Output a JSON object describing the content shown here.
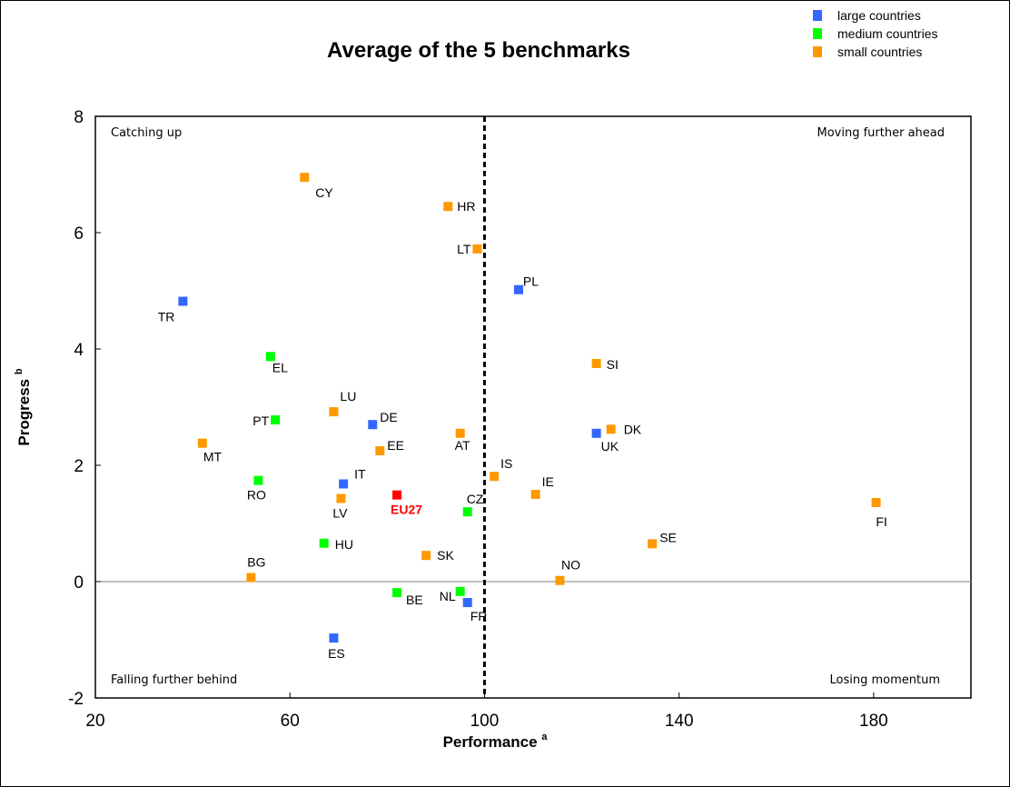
{
  "chart_data": {
    "type": "scatter",
    "title": "Average of the 5 benchmarks",
    "xlabel": "Performance",
    "xlabel_sup": "a",
    "ylabel": "Progress",
    "ylabel_sup": "b",
    "xlim": [
      20,
      200
    ],
    "ylim": [
      -2,
      8
    ],
    "xticks": [
      20,
      60,
      100,
      140,
      180
    ],
    "yticks": [
      -2,
      0,
      2,
      4,
      6,
      8
    ],
    "reference_lines": {
      "vertical_x": 100,
      "horizontal_y": 0
    },
    "grid": false,
    "legend_position": "top-right",
    "colors": {
      "large": "#3366ff",
      "medium": "#00ff00",
      "small": "#ff9900",
      "highlight": "#ff0000"
    },
    "legend": [
      {
        "group": "large",
        "label": "large countries"
      },
      {
        "group": "medium",
        "label": "medium countries"
      },
      {
        "group": "small",
        "label": "small countries"
      }
    ],
    "quadrant_labels": {
      "top_left": "Catching up",
      "top_right": "Moving further ahead",
      "bottom_left": "Falling further behind",
      "bottom_right": "Losing momentum"
    },
    "points": [
      {
        "label": "CY",
        "x": 63,
        "y": 6.95,
        "group": "small"
      },
      {
        "label": "HR",
        "x": 92.5,
        "y": 6.45,
        "group": "small"
      },
      {
        "label": "LT",
        "x": 98.5,
        "y": 5.72,
        "group": "small"
      },
      {
        "label": "PL",
        "x": 107,
        "y": 5.02,
        "group": "large"
      },
      {
        "label": "TR",
        "x": 38,
        "y": 4.82,
        "group": "large"
      },
      {
        "label": "EL",
        "x": 56,
        "y": 3.87,
        "group": "medium"
      },
      {
        "label": "SI",
        "x": 123,
        "y": 3.75,
        "group": "small"
      },
      {
        "label": "LU",
        "x": 69,
        "y": 2.92,
        "group": "small"
      },
      {
        "label": "PT",
        "x": 57,
        "y": 2.78,
        "group": "medium"
      },
      {
        "label": "DE",
        "x": 77,
        "y": 2.7,
        "group": "large"
      },
      {
        "label": "DK",
        "x": 126,
        "y": 2.62,
        "group": "small"
      },
      {
        "label": "UK",
        "x": 123,
        "y": 2.55,
        "group": "large"
      },
      {
        "label": "AT",
        "x": 95,
        "y": 2.55,
        "group": "small"
      },
      {
        "label": "MT",
        "x": 42,
        "y": 2.38,
        "group": "small"
      },
      {
        "label": "EE",
        "x": 78.5,
        "y": 2.25,
        "group": "small"
      },
      {
        "label": "IS",
        "x": 102,
        "y": 1.81,
        "group": "small"
      },
      {
        "label": "RO",
        "x": 53.5,
        "y": 1.74,
        "group": "medium"
      },
      {
        "label": "IT",
        "x": 71,
        "y": 1.68,
        "group": "large"
      },
      {
        "label": "IE",
        "x": 110.5,
        "y": 1.5,
        "group": "small"
      },
      {
        "label": "EU27",
        "x": 82,
        "y": 1.49,
        "group": "highlight"
      },
      {
        "label": "LV",
        "x": 70.5,
        "y": 1.43,
        "group": "small"
      },
      {
        "label": "FI",
        "x": 180.5,
        "y": 1.36,
        "group": "small"
      },
      {
        "label": "CZ",
        "x": 96.5,
        "y": 1.2,
        "group": "medium"
      },
      {
        "label": "HU",
        "x": 67,
        "y": 0.66,
        "group": "medium"
      },
      {
        "label": "SE",
        "x": 134.5,
        "y": 0.65,
        "group": "small"
      },
      {
        "label": "SK",
        "x": 88,
        "y": 0.45,
        "group": "small"
      },
      {
        "label": "BG",
        "x": 52,
        "y": 0.07,
        "group": "small"
      },
      {
        "label": "NO",
        "x": 115.5,
        "y": 0.02,
        "group": "small"
      },
      {
        "label": "BE",
        "x": 82,
        "y": -0.19,
        "group": "medium"
      },
      {
        "label": "NL",
        "x": 95,
        "y": -0.17,
        "group": "medium"
      },
      {
        "label": "FR",
        "x": 96.5,
        "y": -0.36,
        "group": "large"
      },
      {
        "label": "ES",
        "x": 69,
        "y": -0.97,
        "group": "large"
      }
    ]
  }
}
